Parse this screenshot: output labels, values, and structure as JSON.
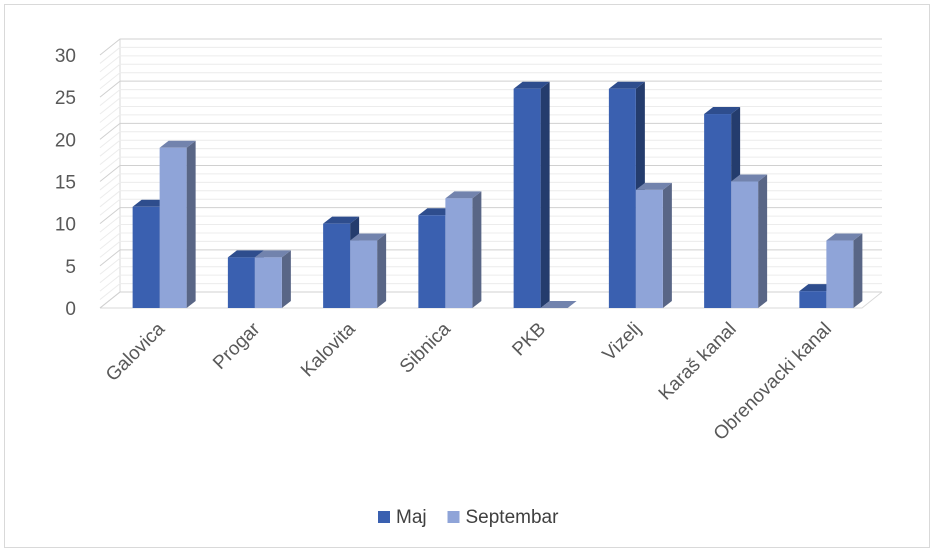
{
  "chart_data": {
    "type": "bar",
    "title": "",
    "xlabel": "",
    "ylabel": "",
    "categories": [
      "Galovica",
      "Progar",
      "Kalovita",
      "Sibnica",
      "PKB",
      "Vizelj",
      "Karaš kanal",
      "Obrenovacki kanal"
    ],
    "series": [
      {
        "name": "Maj",
        "values": [
          12,
          6,
          10,
          11,
          26,
          26,
          23,
          2
        ],
        "color": "#3a60b0"
      },
      {
        "name": "Septembar",
        "values": [
          19,
          6,
          8,
          13,
          0,
          14,
          15,
          8
        ],
        "color": "#8fa4d8"
      }
    ],
    "ylim": [
      0,
      30
    ],
    "yticks": [
      0,
      5,
      10,
      15,
      20,
      25,
      30
    ],
    "grid": true,
    "style": "3d-clustered-column",
    "legend_position": "bottom"
  }
}
